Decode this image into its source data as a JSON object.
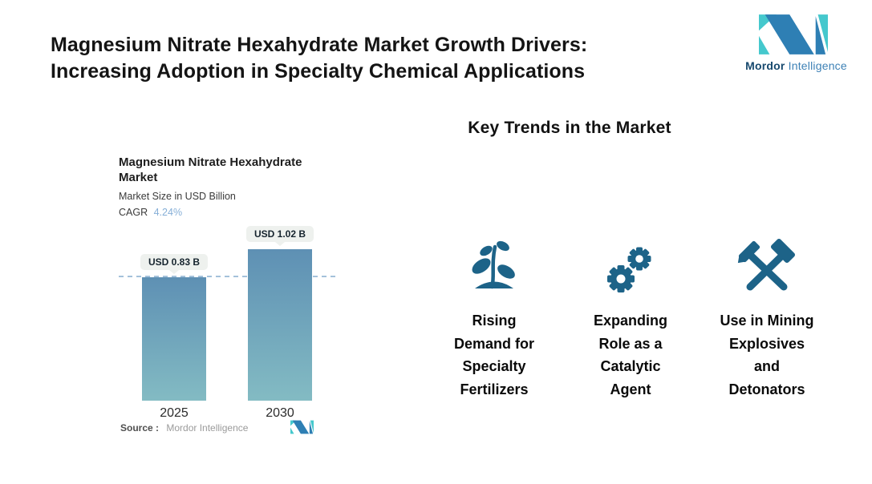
{
  "header": {
    "title_line1": "Magnesium Nitrate Hexahydrate Market Growth Drivers:",
    "title_line2": "Increasing Adoption in Specialty Chemical Applications"
  },
  "brand": {
    "name_bold": "Mordor",
    "name_light": "Intelligence",
    "colors": {
      "blue": "#2E7FB4",
      "teal": "#45C8CD",
      "name_bold_color": "#17496E",
      "name_light_color": "#3D81B6"
    }
  },
  "chart_data": {
    "type": "bar",
    "title": "Magnesium Nitrate Hexahydrate Market",
    "subtitle": "Market Size in USD Billion",
    "cagr_label": "CAGR",
    "cagr_value": "4.24%",
    "categories": [
      "2025",
      "2030"
    ],
    "values": [
      0.83,
      1.02
    ],
    "value_labels": [
      "USD 0.83 B",
      "USD 1.02 B"
    ],
    "ylabel": "Market Size in USD Billion",
    "ylim": [
      0,
      1.1
    ],
    "reference_line": 0.83,
    "grid": "off",
    "legend": "none",
    "bar_gradient_top": "#5E90B4",
    "bar_gradient_bottom": "#83BBC3",
    "dashed_line_color": "#A4C1DB",
    "badge_bg": "#EEF1EE",
    "cagr_value_color": "#86AFD7",
    "source_label": "Source :",
    "source_value": "Mordor Intelligence"
  },
  "trends": {
    "heading": "Key Trends in the Market",
    "icon_color": "#1D6388",
    "items": [
      {
        "icon": "plant-icon",
        "label": "Rising Demand for Specialty Fertilizers",
        "lines": [
          "Rising",
          "Demand for",
          "Specialty",
          "Fertilizers"
        ]
      },
      {
        "icon": "gears-icon",
        "label": "Expanding Role as a Catalytic Agent",
        "lines": [
          "Expanding",
          "Role as a",
          "Catalytic",
          "Agent"
        ]
      },
      {
        "icon": "mining-hammers-icon",
        "label": "Use in Mining Explosives and Detonators",
        "lines": [
          "Use in Mining",
          "Explosives",
          "and",
          "Detonators"
        ]
      }
    ]
  }
}
